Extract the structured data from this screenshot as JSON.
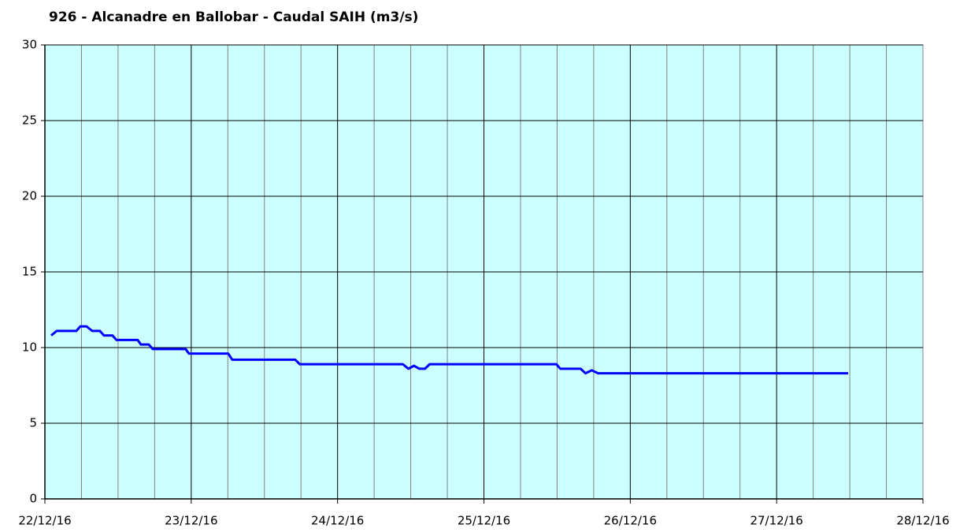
{
  "chart_data": {
    "type": "line",
    "title": "926 - Alcanadre en Ballobar - Caudal SAIH (m3/s)",
    "x": [
      0.043,
      0.081,
      0.215,
      0.242,
      0.285,
      0.323,
      0.376,
      0.403,
      0.462,
      0.489,
      0.634,
      0.656,
      0.71,
      0.737,
      0.962,
      0.984,
      1.253,
      1.28,
      1.71,
      1.742,
      2.446,
      2.484,
      2.522,
      2.559,
      2.597,
      2.629,
      3.495,
      3.522,
      3.661,
      3.694,
      3.737,
      3.78,
      5.489
    ],
    "series": [
      {
        "name": "Caudal",
        "color": "#0000ff",
        "values": [
          10.8,
          11.1,
          11.1,
          11.4,
          11.4,
          11.1,
          11.1,
          10.8,
          10.8,
          10.5,
          10.5,
          10.2,
          10.2,
          9.9,
          9.9,
          9.6,
          9.6,
          9.2,
          9.2,
          8.9,
          8.9,
          8.6,
          8.8,
          8.6,
          8.6,
          8.9,
          8.9,
          8.6,
          8.6,
          8.3,
          8.5,
          8.3,
          8.3
        ]
      }
    ],
    "xlim": [
      0,
      6
    ],
    "xticks": [
      {
        "value": 0,
        "label": "22/12/16"
      },
      {
        "value": 1,
        "label": "23/12/16"
      },
      {
        "value": 2,
        "label": "24/12/16"
      },
      {
        "value": 3,
        "label": "25/12/16"
      },
      {
        "value": 4,
        "label": "26/12/16"
      },
      {
        "value": 5,
        "label": "27/12/16"
      },
      {
        "value": 6,
        "label": "28/12/16"
      }
    ],
    "ylim": [
      0,
      30
    ],
    "yticks": [
      0,
      5,
      10,
      15,
      20,
      25,
      30
    ],
    "grid": true,
    "background": "#ccffff"
  }
}
